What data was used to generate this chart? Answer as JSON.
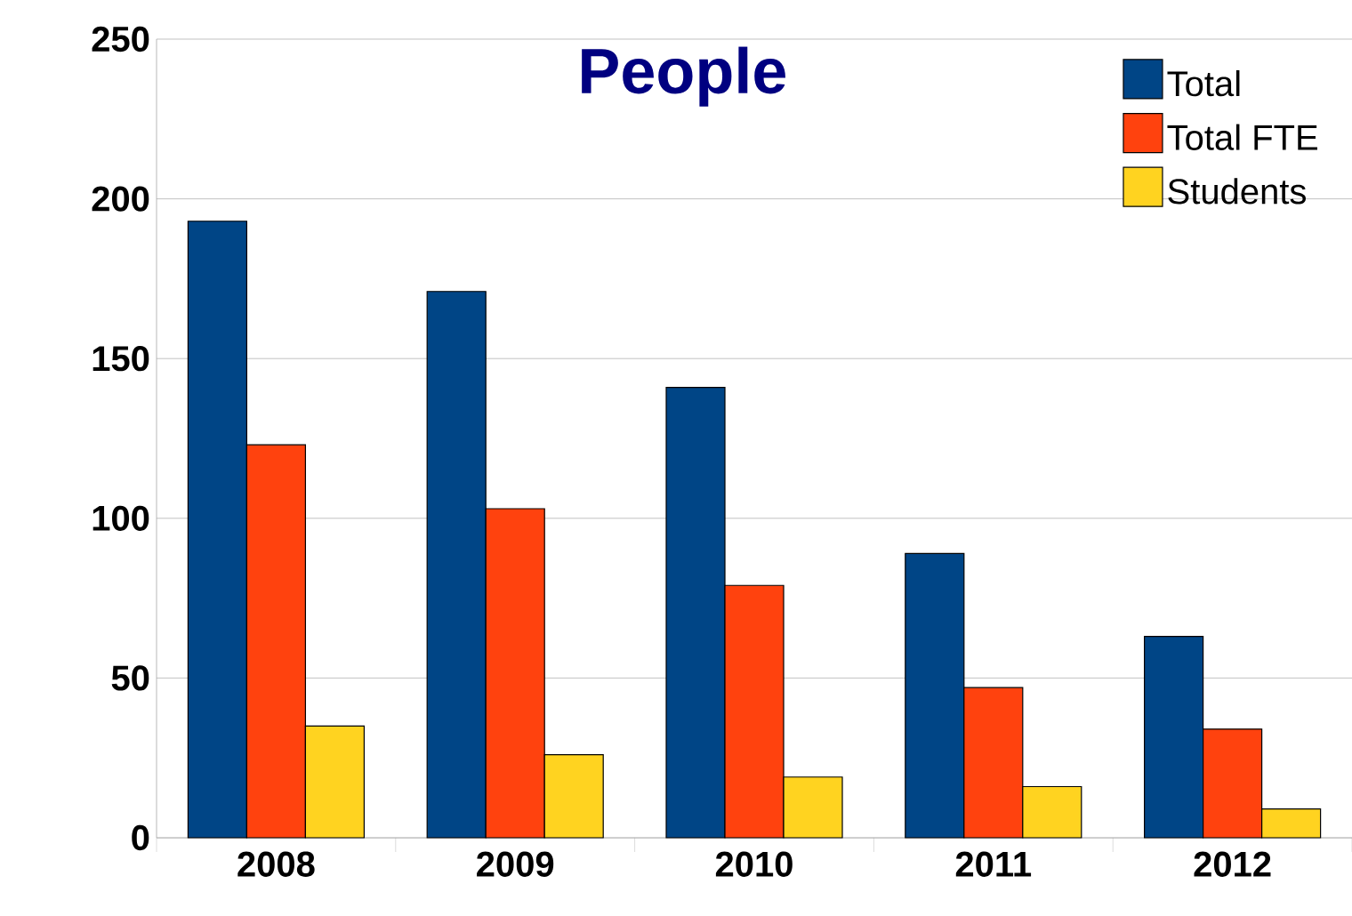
{
  "chart_data": {
    "type": "bar",
    "title": "People",
    "categories": [
      "2008",
      "2009",
      "2010",
      "2011",
      "2012"
    ],
    "series": [
      {
        "name": "Total",
        "color": "#004586",
        "values": [
          193,
          171,
          141,
          89,
          63
        ]
      },
      {
        "name": "Total FTE",
        "color": "#ff420e",
        "values": [
          123,
          103,
          79,
          47,
          34
        ]
      },
      {
        "name": "Students",
        "color": "#ffd320",
        "values": [
          35,
          26,
          19,
          16,
          9
        ]
      }
    ],
    "ylim": [
      0,
      250
    ],
    "yticks": [
      0,
      50,
      100,
      150,
      200,
      250
    ],
    "grid": "y",
    "legend": "top right"
  }
}
